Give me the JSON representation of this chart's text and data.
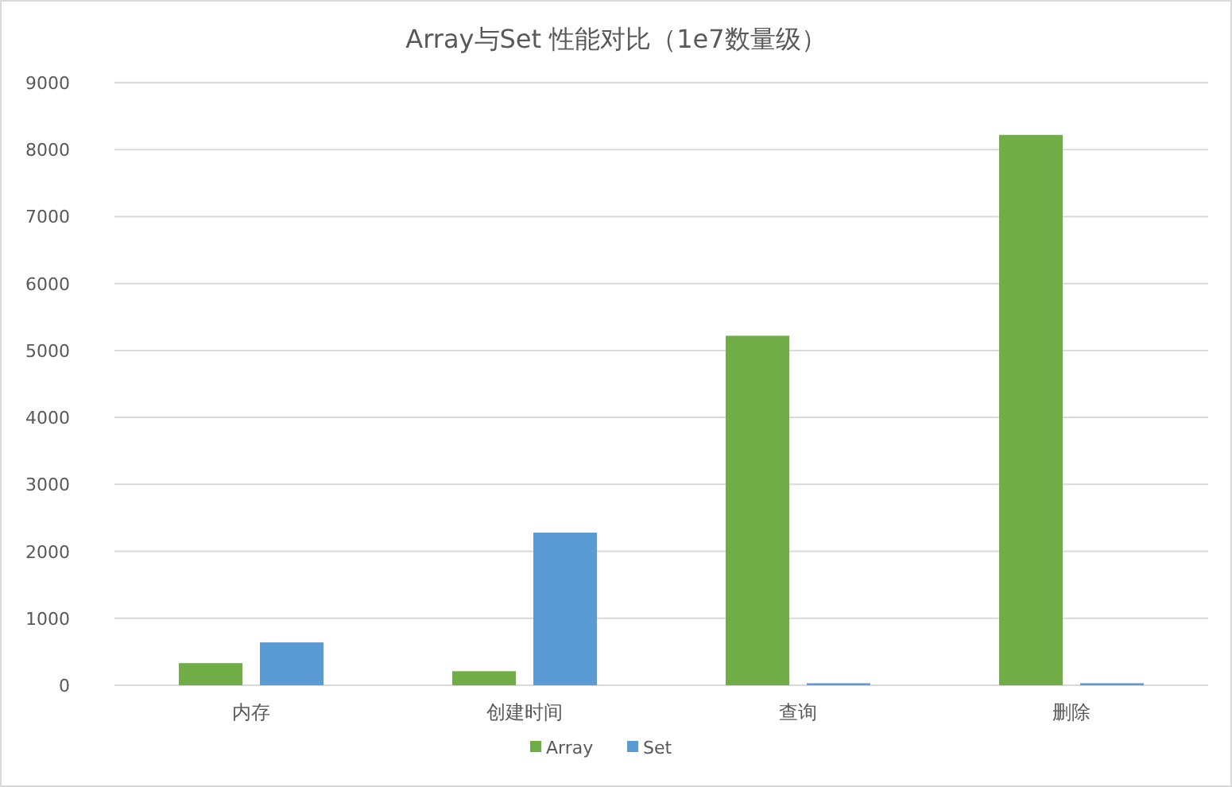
{
  "chart_data": {
    "type": "bar",
    "title": "Array与Set 性能对比（1e7数量级）",
    "categories": [
      "内存",
      "创建时间",
      "查询",
      "删除"
    ],
    "series": [
      {
        "name": "Array",
        "color": "#70ad47",
        "values": [
          330,
          210,
          5220,
          8220
        ]
      },
      {
        "name": "Set",
        "color": "#5b9bd5",
        "values": [
          640,
          2280,
          30,
          30
        ]
      }
    ],
    "ylim": [
      0,
      9000
    ],
    "yticks": [
      0,
      1000,
      2000,
      3000,
      4000,
      5000,
      6000,
      7000,
      8000,
      9000
    ],
    "grid": "y",
    "legend": "bottom"
  }
}
